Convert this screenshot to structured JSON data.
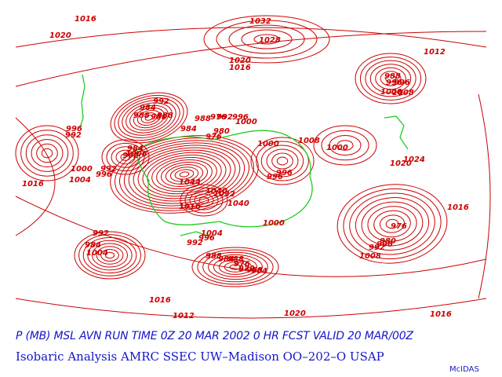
{
  "colors": {
    "isobar": "#cc0000",
    "coastline": "#22cc22",
    "caption": "#1515c8",
    "background": "#ffffff"
  },
  "captions": {
    "forecast_line": "P (MB) MSL AVN RUN TIME 0Z 20 MAR 2002   0  HR FCST VALID 20 MAR/00Z",
    "analysis_line": "Isobaric Analysis AMRC SSEC UW–Madison OO–202–O USAP",
    "brand": "McIDAS"
  },
  "isobar_labels": [
    "1016",
    "1020",
    "1032",
    "1028",
    "1012",
    "1020",
    "1016",
    "988",
    "996",
    "996",
    "1000",
    "1008",
    "984",
    "992",
    "988",
    "980",
    "988",
    "984",
    "976",
    "988",
    "992",
    "996",
    "1000",
    "980",
    "976",
    "996",
    "992",
    "984",
    "1000",
    "1008",
    "1000",
    "1008",
    "1024",
    "1020",
    "996",
    "992",
    "992",
    "1000",
    "1016",
    "1004",
    "996",
    "1044",
    "1040",
    "1032",
    "1040",
    "1016",
    "1000",
    "1004",
    "1016",
    "996",
    "992",
    "984",
    "1004",
    "992",
    "996",
    "988",
    "984",
    "988",
    "976",
    "972",
    "968",
    "964",
    "976",
    "980",
    "996",
    "992",
    "1008",
    "1016",
    "1012",
    "1020",
    "1016"
  ]
}
